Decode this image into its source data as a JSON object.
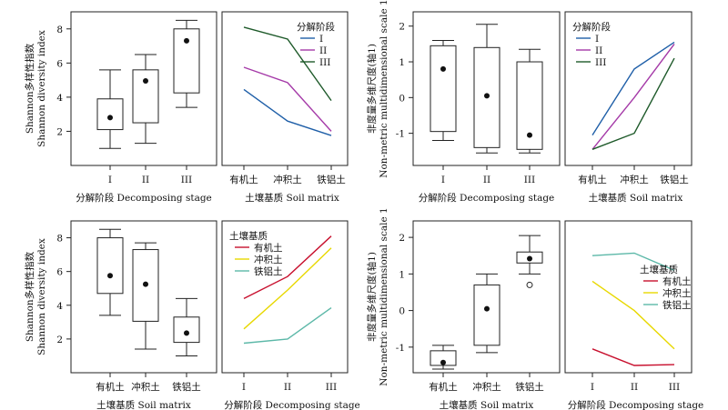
{
  "colors": {
    "stage_I": "#1f5fa8",
    "stage_II": "#a53aa8",
    "stage_III": "#1e5a2a",
    "soil_organic": "#c8102e",
    "soil_alluvial": "#e8d800",
    "soil_ferralsol": "#5cb8a8"
  },
  "chart_data": [
    {
      "id": "p1",
      "type": "box",
      "ylabel_cn": "Shannon多样性指数",
      "ylabel_en": "Shannon diversity index",
      "xlabel": "分解阶段 Decomposing stage",
      "categories": [
        "I",
        "II",
        "III"
      ],
      "ylim": [
        0,
        9
      ],
      "yticks": [
        2,
        4,
        6,
        8
      ],
      "boxes": [
        {
          "min": 1.0,
          "q1": 2.1,
          "q3": 3.9,
          "max": 5.6,
          "mean": 2.8
        },
        {
          "min": 1.3,
          "q1": 2.5,
          "q3": 5.6,
          "max": 6.5,
          "mean": 4.95
        },
        {
          "min": 3.4,
          "q1": 4.25,
          "q3": 8.0,
          "max": 8.5,
          "mean": 7.3
        }
      ]
    },
    {
      "id": "p2",
      "type": "line",
      "xlabel": "土壤基质  Soil matrix",
      "categories": [
        "有机土",
        "冲积土",
        "铁铝土"
      ],
      "ylim": [
        0,
        9
      ],
      "legend_title": "分解阶段",
      "legend_position": "top-right",
      "series": [
        {
          "name": "I",
          "color_key": "stage_I",
          "values": [
            4.45,
            2.6,
            1.75
          ]
        },
        {
          "name": "II",
          "color_key": "stage_II",
          "values": [
            5.75,
            4.85,
            2.0
          ]
        },
        {
          "name": "III",
          "color_key": "stage_III",
          "values": [
            8.1,
            7.4,
            3.8
          ]
        }
      ]
    },
    {
      "id": "p3",
      "type": "box",
      "ylabel_cn": "非度量多维尺度(轴1)",
      "ylabel_en": "Non-metric multidimensional scale 1",
      "xlabel": "分解阶段 Decomposing stage",
      "categories": [
        "I",
        "II",
        "III"
      ],
      "ylim": [
        -1.9,
        2.4
      ],
      "yticks": [
        -1,
        0,
        1,
        2
      ],
      "boxes": [
        {
          "min": -1.2,
          "q1": -0.95,
          "q3": 1.45,
          "max": 1.6,
          "mean": 0.8
        },
        {
          "min": -1.55,
          "q1": -1.4,
          "q3": 1.4,
          "max": 2.05,
          "mean": 0.05
        },
        {
          "min": -1.55,
          "q1": -1.45,
          "q3": 1.0,
          "max": 1.35,
          "mean": -1.05
        }
      ]
    },
    {
      "id": "p4",
      "type": "line",
      "xlabel": "土壤基质  Soil matrix",
      "categories": [
        "有机土",
        "冲积土",
        "铁铝土"
      ],
      "ylim": [
        -1.9,
        2.4
      ],
      "legend_title": "分解阶段",
      "legend_position": "top-left",
      "series": [
        {
          "name": "I",
          "color_key": "stage_I",
          "values": [
            -1.05,
            0.8,
            1.55
          ]
        },
        {
          "name": "II",
          "color_key": "stage_II",
          "values": [
            -1.45,
            0.0,
            1.5
          ]
        },
        {
          "name": "III",
          "color_key": "stage_III",
          "values": [
            -1.45,
            -1.0,
            1.1
          ]
        }
      ]
    },
    {
      "id": "p5",
      "type": "box",
      "ylabel_cn": "Shannon多样性指数",
      "ylabel_en": "Shannon diversity index",
      "xlabel": "土壤基质 Soil matrix",
      "categories": [
        "有机土",
        "冲积土",
        "铁铝土"
      ],
      "ylim": [
        0,
        9
      ],
      "yticks": [
        2,
        4,
        6,
        8
      ],
      "boxes": [
        {
          "min": 3.4,
          "q1": 4.7,
          "q3": 8.0,
          "max": 8.5,
          "mean": 5.75
        },
        {
          "min": 1.4,
          "q1": 3.05,
          "q3": 7.3,
          "max": 7.7,
          "mean": 5.25
        },
        {
          "min": 1.0,
          "q1": 1.8,
          "q3": 3.3,
          "max": 4.4,
          "mean": 2.35
        }
      ]
    },
    {
      "id": "p6",
      "type": "line",
      "xlabel": "分解阶段  Decomposing stage",
      "categories": [
        "I",
        "II",
        "III"
      ],
      "ylim": [
        0,
        9
      ],
      "legend_title": "土壤基质",
      "legend_position": "top-left",
      "series": [
        {
          "name": "有机土",
          "color_key": "soil_organic",
          "values": [
            4.4,
            5.7,
            8.1
          ]
        },
        {
          "name": "冲积土",
          "color_key": "soil_alluvial",
          "values": [
            2.6,
            4.9,
            7.4
          ]
        },
        {
          "name": "铁铝土",
          "color_key": "soil_ferralsol",
          "values": [
            1.75,
            2.0,
            3.85
          ]
        }
      ]
    },
    {
      "id": "p7",
      "type": "box",
      "ylabel_cn": "非度量多维尺度(轴1)",
      "ylabel_en": "Non-metric multidimensional scale 1",
      "xlabel": "土壤基质 Soil matrix",
      "categories": [
        "有机土",
        "冲积土",
        "铁铝土"
      ],
      "ylim": [
        -1.7,
        2.45
      ],
      "yticks": [
        -1,
        0,
        1,
        2
      ],
      "boxes": [
        {
          "min": -1.6,
          "q1": -1.5,
          "q3": -1.1,
          "max": -0.95,
          "mean": -1.42
        },
        {
          "min": -1.15,
          "q1": -0.95,
          "q3": 0.7,
          "max": 1.0,
          "mean": 0.05
        },
        {
          "min": 1.0,
          "q1": 1.3,
          "q3": 1.6,
          "max": 2.05,
          "mean": 1.42,
          "outliers": [
            0.7
          ]
        }
      ]
    },
    {
      "id": "p8",
      "type": "line",
      "xlabel": "分解阶段  Decomposing stage",
      "categories": [
        "I",
        "II",
        "III"
      ],
      "ylim": [
        -1.7,
        2.45
      ],
      "legend_title": "土壤基质",
      "legend_position": "right",
      "series": [
        {
          "name": "有机土",
          "color_key": "soil_organic",
          "values": [
            -1.05,
            -1.5,
            -1.48
          ]
        },
        {
          "name": "冲积土",
          "color_key": "soil_alluvial",
          "values": [
            0.8,
            0.0,
            -1.05
          ]
        },
        {
          "name": "铁铝土",
          "color_key": "soil_ferralsol",
          "values": [
            1.5,
            1.57,
            1.1
          ]
        }
      ]
    }
  ]
}
